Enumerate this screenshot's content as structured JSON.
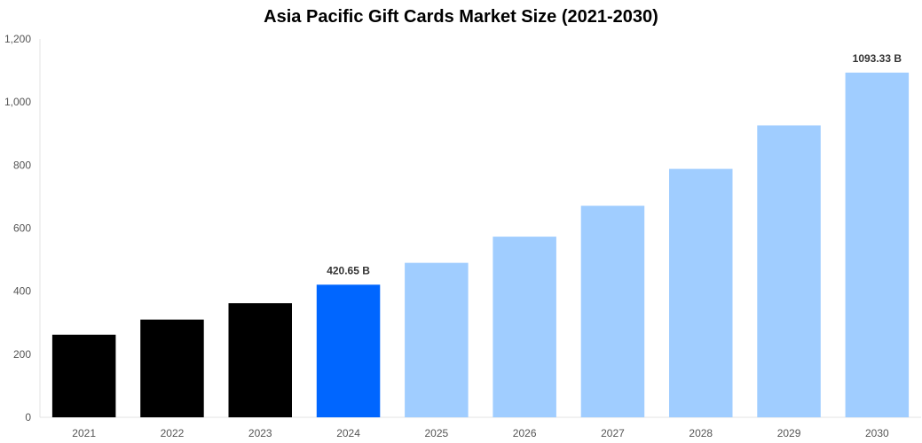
{
  "chart_data": {
    "type": "bar",
    "title": "Asia Pacific Gift Cards Market Size (2021-2030)",
    "xlabel": "",
    "ylabel": "",
    "categories": [
      "2021",
      "2022",
      "2023",
      "2024",
      "2025",
      "2026",
      "2027",
      "2028",
      "2029",
      "2030"
    ],
    "values": [
      262,
      310,
      362,
      420.65,
      490,
      573,
      671,
      788,
      926,
      1093.33
    ],
    "ylim": [
      0,
      1200
    ],
    "yticks": [
      0,
      200,
      400,
      600,
      800,
      1000,
      1200
    ],
    "ytick_labels": [
      "0",
      "200",
      "400",
      "600",
      "800",
      "1,000",
      "1,200"
    ],
    "data_labels": [
      {
        "category": "2024",
        "text": "420.65 B"
      },
      {
        "category": "2030",
        "text": "1093.33 B"
      }
    ],
    "bar_colors": [
      "#000000",
      "#000000",
      "#000000",
      "#0066ff",
      "#a0cdff",
      "#a0cdff",
      "#a0cdff",
      "#a0cdff",
      "#a0cdff",
      "#a0cdff"
    ],
    "grid": false,
    "legend": "none"
  }
}
